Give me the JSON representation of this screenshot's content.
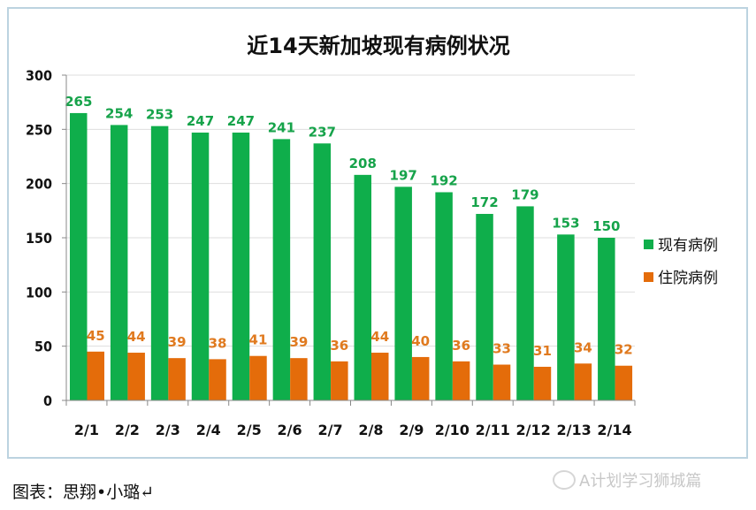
{
  "chart_data": {
    "type": "bar",
    "title": "近14天新加坡现有病例状况",
    "categories": [
      "2/1",
      "2/2",
      "2/3",
      "2/4",
      "2/5",
      "2/6",
      "2/7",
      "2/8",
      "2/9",
      "2/10",
      "2/11",
      "2/12",
      "2/13",
      "2/14"
    ],
    "series": [
      {
        "name": "现有病例",
        "color": "#0fae4b",
        "label_color": "#16a34a",
        "values": [
          265,
          254,
          253,
          247,
          247,
          241,
          237,
          208,
          197,
          192,
          172,
          179,
          153,
          150
        ]
      },
      {
        "name": "住院病例",
        "color": "#e46c0a",
        "label_color": "#e07a1f",
        "values": [
          45,
          44,
          39,
          38,
          41,
          39,
          36,
          44,
          40,
          36,
          33,
          31,
          34,
          32
        ]
      }
    ],
    "ylim": [
      0,
      300
    ],
    "yticks": [
      0,
      50,
      100,
      150,
      200,
      250,
      300
    ],
    "grid": true,
    "legend": "right",
    "data_labels": true
  },
  "caption": "图表：思翔•小璐↵",
  "watermark": "A计划学习狮城篇"
}
